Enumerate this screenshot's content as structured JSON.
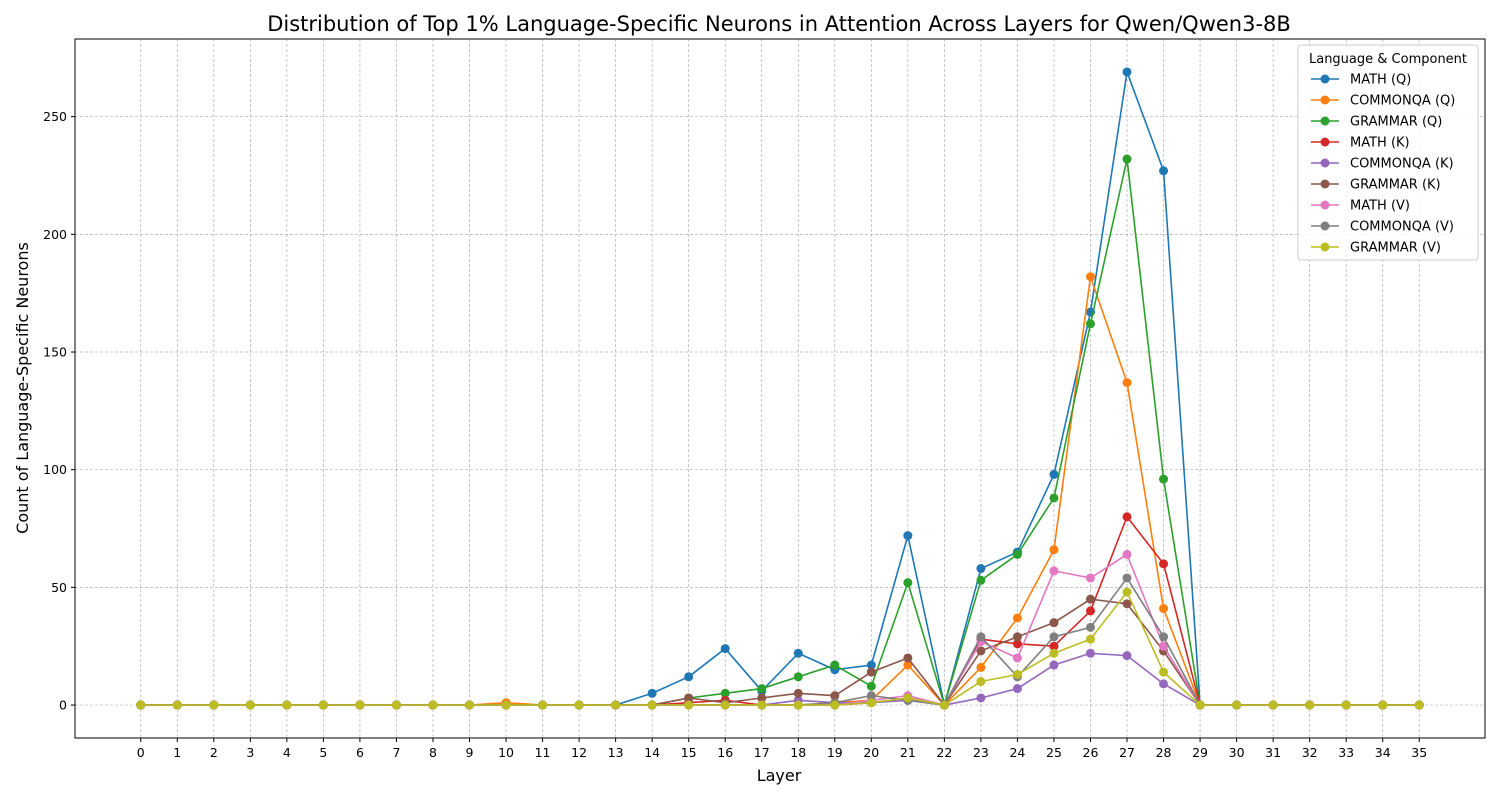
{
  "chart_data": {
    "type": "line",
    "title": "Distribution of Top 1% Language-Specific Neurons in Attention Across Layers for Qwen/Qwen3-8B",
    "xlabel": "Layer",
    "ylabel": "Count of Language-Specific Neurons",
    "x": [
      0,
      1,
      2,
      3,
      4,
      5,
      6,
      7,
      8,
      9,
      10,
      11,
      12,
      13,
      14,
      15,
      16,
      17,
      18,
      19,
      20,
      21,
      22,
      23,
      24,
      25,
      26,
      27,
      28,
      29,
      30,
      31,
      32,
      33,
      34,
      35
    ],
    "xlim": [
      -1.8,
      36.8
    ],
    "ylim": [
      -14,
      283
    ],
    "yticks": [
      0,
      50,
      100,
      150,
      200,
      250
    ],
    "grid": true,
    "legend": {
      "title": "Language & Component",
      "placement": "top-right"
    },
    "series": [
      {
        "name": "MATH (Q)",
        "color": "#1f77b4",
        "values": [
          0,
          0,
          0,
          0,
          0,
          0,
          0,
          0,
          0,
          0,
          0,
          0,
          0,
          0,
          5,
          12,
          24,
          6,
          22,
          15,
          17,
          72,
          0,
          58,
          65,
          98,
          167,
          269,
          227,
          0,
          0,
          0,
          0,
          0,
          0,
          0
        ]
      },
      {
        "name": "COMMONQA (Q)",
        "color": "#ff7f0e",
        "values": [
          0,
          0,
          0,
          0,
          0,
          0,
          0,
          0,
          0,
          0,
          1,
          0,
          0,
          0,
          0,
          0,
          0,
          0,
          0,
          1,
          2,
          17,
          0,
          16,
          37,
          66,
          182,
          137,
          41,
          0,
          0,
          0,
          0,
          0,
          0,
          0
        ]
      },
      {
        "name": "GRAMMAR (Q)",
        "color": "#2ca02c",
        "values": [
          0,
          0,
          0,
          0,
          0,
          0,
          0,
          0,
          0,
          0,
          0,
          0,
          0,
          0,
          0,
          3,
          5,
          7,
          12,
          17,
          8,
          52,
          0,
          53,
          64,
          88,
          162,
          232,
          96,
          0,
          0,
          0,
          0,
          0,
          0,
          0
        ]
      },
      {
        "name": "MATH (K)",
        "color": "#d62728",
        "values": [
          0,
          0,
          0,
          0,
          0,
          0,
          0,
          0,
          0,
          0,
          0,
          0,
          0,
          0,
          0,
          1,
          2,
          0,
          0,
          0,
          1,
          3,
          0,
          28,
          26,
          25,
          40,
          80,
          60,
          0,
          0,
          0,
          0,
          0,
          0,
          0
        ]
      },
      {
        "name": "COMMONQA (K)",
        "color": "#9467bd",
        "values": [
          0,
          0,
          0,
          0,
          0,
          0,
          0,
          0,
          0,
          0,
          0,
          0,
          0,
          0,
          0,
          0,
          0,
          0,
          2,
          1,
          1,
          2,
          0,
          3,
          7,
          17,
          22,
          21,
          9,
          0,
          0,
          0,
          0,
          0,
          0,
          0
        ]
      },
      {
        "name": "GRAMMAR (K)",
        "color": "#8c564b",
        "values": [
          0,
          0,
          0,
          0,
          0,
          0,
          0,
          0,
          0,
          0,
          0,
          0,
          0,
          0,
          0,
          3,
          1,
          3,
          5,
          4,
          14,
          20,
          0,
          23,
          29,
          35,
          45,
          43,
          23,
          0,
          0,
          0,
          0,
          0,
          0,
          0
        ]
      },
      {
        "name": "MATH (V)",
        "color": "#e377c2",
        "values": [
          0,
          0,
          0,
          0,
          0,
          0,
          0,
          0,
          0,
          0,
          0,
          0,
          0,
          0,
          0,
          0,
          0,
          0,
          0,
          0,
          2,
          4,
          0,
          27,
          20,
          57,
          54,
          64,
          25,
          0,
          0,
          0,
          0,
          0,
          0,
          0
        ]
      },
      {
        "name": "COMMONQA (V)",
        "color": "#7f7f7f",
        "values": [
          0,
          0,
          0,
          0,
          0,
          0,
          0,
          0,
          0,
          0,
          0,
          0,
          0,
          0,
          0,
          0,
          0,
          0,
          0,
          1,
          4,
          2,
          0,
          29,
          12,
          29,
          33,
          54,
          29,
          0,
          0,
          0,
          0,
          0,
          0,
          0
        ]
      },
      {
        "name": "GRAMMAR (V)",
        "color": "#bcbd22",
        "values": [
          0,
          0,
          0,
          0,
          0,
          0,
          0,
          0,
          0,
          0,
          0,
          0,
          0,
          0,
          0,
          0,
          0,
          0,
          0,
          0,
          1,
          3,
          0,
          10,
          13,
          22,
          28,
          48,
          14,
          0,
          0,
          0,
          0,
          0,
          0,
          0
        ]
      }
    ]
  }
}
